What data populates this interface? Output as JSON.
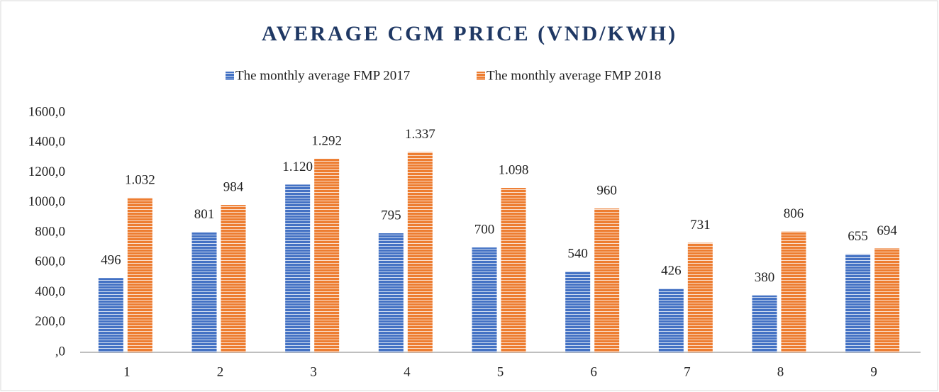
{
  "chart_data": {
    "type": "bar",
    "title": "AVERAGE CGM PRICE (VND/KWH)",
    "categories": [
      "1",
      "2",
      "3",
      "4",
      "5",
      "6",
      "7",
      "8",
      "9"
    ],
    "series": [
      {
        "name": "The monthly average FMP 2017",
        "color": "#4472c4",
        "values": [
          496,
          801,
          1120,
          795,
          700,
          540,
          426,
          380,
          655
        ],
        "value_labels": [
          "496",
          "801",
          "1.120",
          "795",
          "700",
          "540",
          "426",
          "380",
          "655"
        ]
      },
      {
        "name": "The monthly average FMP 2018",
        "color": "#ed7d31",
        "values": [
          1032,
          984,
          1292,
          1337,
          1098,
          960,
          731,
          806,
          694
        ],
        "value_labels": [
          "1.032",
          "984",
          "1.292",
          "1.337",
          "1.098",
          "960",
          "731",
          "806",
          "694"
        ]
      }
    ],
    "ylim": [
      0,
      1600
    ],
    "yticks": [
      {
        "value": 0,
        "label": ",0"
      },
      {
        "value": 200,
        "label": "200,0"
      },
      {
        "value": 400,
        "label": "400,0"
      },
      {
        "value": 600,
        "label": "600,0"
      },
      {
        "value": 800,
        "label": "800,0"
      },
      {
        "value": 1000,
        "label": "1000,0"
      },
      {
        "value": 1200,
        "label": "1200,0"
      },
      {
        "value": 1400,
        "label": "1400,0"
      },
      {
        "value": 1600,
        "label": "1600,0"
      }
    ],
    "grid": false,
    "legend": "top"
  }
}
